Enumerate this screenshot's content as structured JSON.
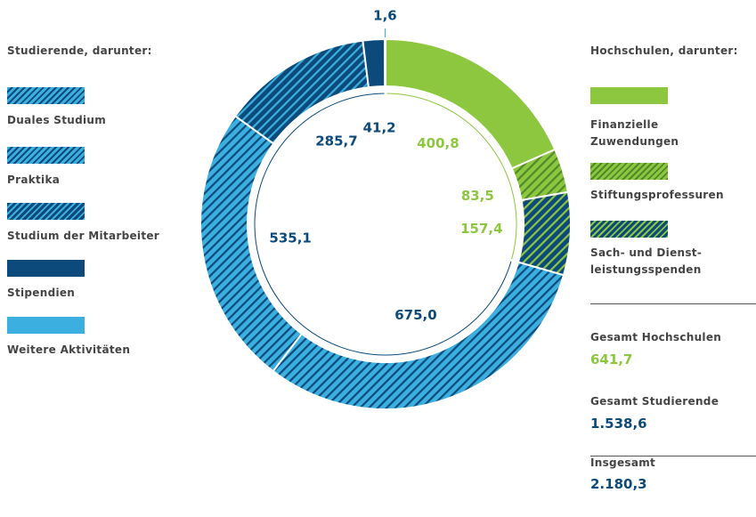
{
  "chart_data": {
    "type": "donut",
    "groups": [
      {
        "name": "Hochschulen, darunter:",
        "color": "#8dc63f",
        "categories": [
          "Finanzielle Zuwendungen",
          "Stiftungsprofessuren",
          "Sach- und Dienst-leistungsspenden"
        ],
        "values": [
          400.8,
          83.5,
          157.4
        ],
        "value_labels": [
          "400,8",
          "83,5",
          "157,4"
        ],
        "colors": [
          "#8dc63f",
          "#8dc63f",
          "#0b4a7a"
        ],
        "hatch": [
          null,
          "#4f8a2a",
          "#8dc63f"
        ],
        "total_label": "Gesamt Hochschulen",
        "total": "641,7"
      },
      {
        "name": "Studierende, darunter:",
        "color": "#0b4a7a",
        "categories": [
          "Duales Studium",
          "Praktika",
          "Studium der Mitarbeiter",
          "Stipendien",
          "Weitere Aktivitäten"
        ],
        "values": [
          675.0,
          535.1,
          285.7,
          41.2,
          1.6
        ],
        "value_labels": [
          "675,0",
          "535,1",
          "285,7",
          "41,2",
          "1,6"
        ],
        "colors": [
          "#3bb0e0",
          "#3bb0e0",
          "#0b4a7a",
          "#0b4a7a",
          "#3bb0e0"
        ],
        "hatch": [
          "#0b4a7a",
          "#0b4a7a",
          "#3bb0e0",
          null,
          null
        ],
        "total_label": "Gesamt Studierende",
        "total": "1.538,6"
      }
    ],
    "grand_total_label": "Insgesamt",
    "grand_total": "2.180,3"
  }
}
